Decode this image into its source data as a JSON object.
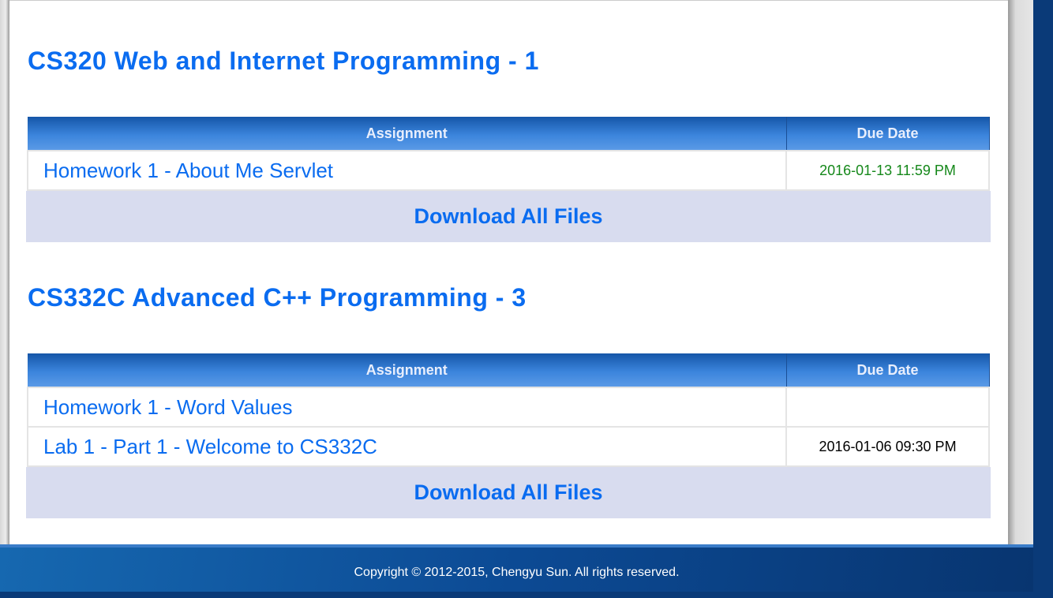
{
  "courses": [
    {
      "title": "CS320 Web and Internet Programming - 1",
      "headers": {
        "assignment": "Assignment",
        "due": "Due Date"
      },
      "rows": [
        {
          "assignment": "Homework 1 - About Me Servlet",
          "due": "2016-01-13 11:59 PM",
          "due_color": "#15881a"
        }
      ],
      "download": "Download All Files"
    },
    {
      "title": "CS332C Advanced C++ Programming - 3",
      "headers": {
        "assignment": "Assignment",
        "due": "Due Date"
      },
      "rows": [
        {
          "assignment": "Homework 1 - Word Values",
          "due": ""
        },
        {
          "assignment": "Lab 1 - Part 1 - Welcome to CS332C",
          "due": "2016-01-06 09:30 PM",
          "due_color": "#000000"
        }
      ],
      "download": "Download All Files"
    }
  ],
  "footer": "Copyright © 2012-2015, Chengyu Sun. All rights reserved."
}
